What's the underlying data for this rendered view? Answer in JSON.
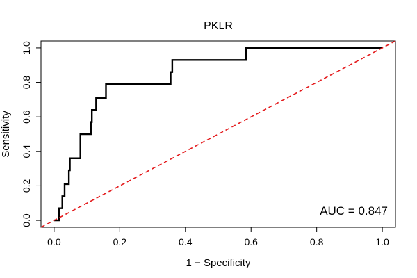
{
  "chart_data": {
    "type": "line",
    "title": "PKLR",
    "xlabel": "1 − Specificity",
    "ylabel": "Sensitivity",
    "xlim": [
      -0.04,
      1.04
    ],
    "ylim": [
      -0.04,
      1.04
    ],
    "x_ticks": [
      "0.0",
      "0.2",
      "0.4",
      "0.6",
      "0.8",
      "1.0"
    ],
    "x_tick_values": [
      0.0,
      0.2,
      0.4,
      0.6,
      0.8,
      1.0
    ],
    "y_ticks": [
      "0.0",
      "0.2",
      "0.4",
      "0.6",
      "0.8",
      "1.0"
    ],
    "y_tick_values": [
      0.0,
      0.2,
      0.4,
      0.6,
      0.8,
      1.0
    ],
    "grid": false,
    "annotation": "AUC = 0.847",
    "series": [
      {
        "style": "step",
        "color": "#000000",
        "x": [
          0.0,
          0.015,
          0.015,
          0.025,
          0.025,
          0.032,
          0.032,
          0.035,
          0.035,
          0.045,
          0.045,
          0.048,
          0.048,
          0.08,
          0.08,
          0.112,
          0.112,
          0.115,
          0.115,
          0.128,
          0.128,
          0.158,
          0.158,
          0.355,
          0.355,
          0.36,
          0.36,
          0.585,
          0.585,
          1.0
        ],
        "y": [
          0.0,
          0.0,
          0.07,
          0.07,
          0.14,
          0.14,
          0.21,
          0.21,
          0.21,
          0.21,
          0.29,
          0.29,
          0.36,
          0.36,
          0.5,
          0.5,
          0.57,
          0.57,
          0.64,
          0.64,
          0.71,
          0.71,
          0.79,
          0.79,
          0.86,
          0.86,
          0.93,
          0.93,
          1.0,
          1.0
        ]
      },
      {
        "style": "dashed",
        "color": "#e41a1c",
        "x": [
          -0.04,
          1.04
        ],
        "y": [
          -0.04,
          1.04
        ]
      }
    ]
  }
}
